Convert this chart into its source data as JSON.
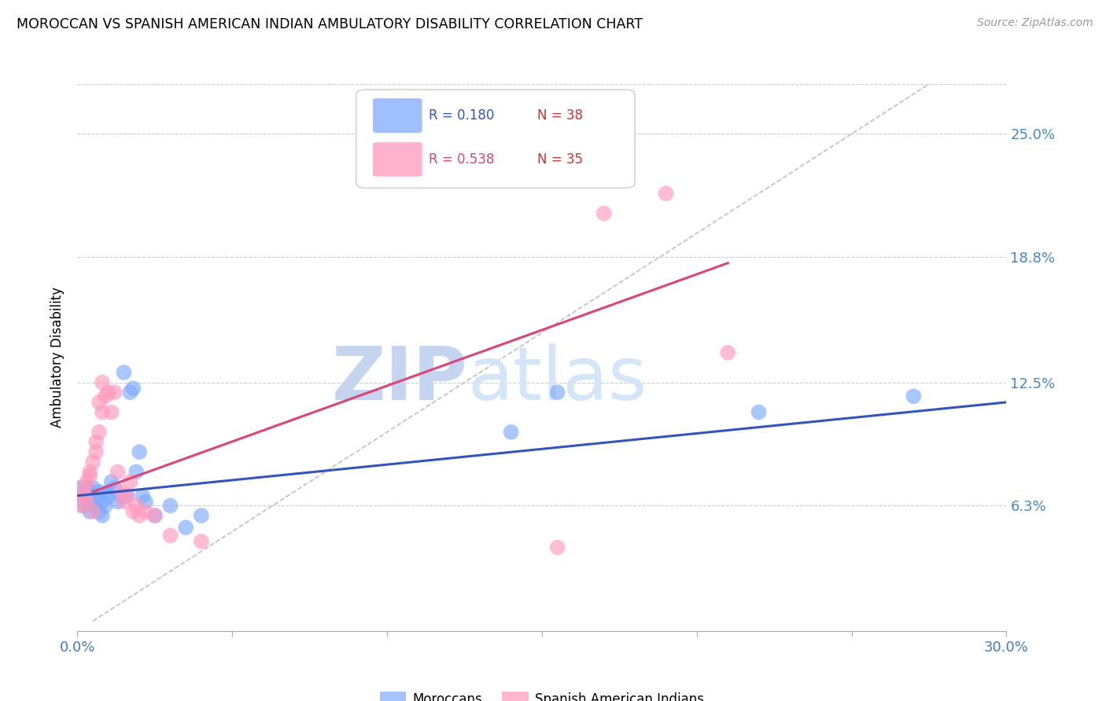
{
  "title": "MOROCCAN VS SPANISH AMERICAN INDIAN AMBULATORY DISABILITY CORRELATION CHART",
  "source": "Source: ZipAtlas.com",
  "ylabel": "Ambulatory Disability",
  "ytick_labels": [
    "25.0%",
    "18.8%",
    "12.5%",
    "6.3%"
  ],
  "ytick_values": [
    0.25,
    0.188,
    0.125,
    0.063
  ],
  "xlim": [
    0.0,
    0.3
  ],
  "ylim": [
    0.0,
    0.275
  ],
  "moroccan_R": "0.180",
  "moroccan_N": "38",
  "spanish_R": "0.538",
  "spanish_N": "35",
  "moroccan_color": "#7faaff",
  "spanish_color": "#ff99bb",
  "moroccan_trend_color": "#3355bb",
  "spanish_trend_color": "#dd4477",
  "legend_label_moroccan": "Moroccans",
  "legend_label_spanish": "Spanish American Indians",
  "watermark_zip": "ZIP",
  "watermark_atlas": "atlas",
  "moroccan_scatter_x": [
    0.001,
    0.002,
    0.002,
    0.003,
    0.003,
    0.004,
    0.004,
    0.005,
    0.005,
    0.006,
    0.006,
    0.007,
    0.007,
    0.008,
    0.008,
    0.009,
    0.01,
    0.01,
    0.011,
    0.012,
    0.013,
    0.014,
    0.015,
    0.016,
    0.017,
    0.018,
    0.019,
    0.02,
    0.021,
    0.022,
    0.025,
    0.03,
    0.035,
    0.04,
    0.14,
    0.155,
    0.22,
    0.27
  ],
  "moroccan_scatter_y": [
    0.072,
    0.068,
    0.063,
    0.072,
    0.065,
    0.068,
    0.06,
    0.063,
    0.072,
    0.063,
    0.068,
    0.07,
    0.06,
    0.065,
    0.058,
    0.063,
    0.07,
    0.068,
    0.075,
    0.072,
    0.065,
    0.068,
    0.13,
    0.068,
    0.12,
    0.122,
    0.08,
    0.09,
    0.068,
    0.065,
    0.058,
    0.063,
    0.052,
    0.058,
    0.1,
    0.12,
    0.11,
    0.118
  ],
  "spanish_scatter_x": [
    0.001,
    0.002,
    0.002,
    0.003,
    0.003,
    0.004,
    0.004,
    0.005,
    0.005,
    0.006,
    0.006,
    0.007,
    0.007,
    0.008,
    0.008,
    0.009,
    0.01,
    0.011,
    0.012,
    0.013,
    0.014,
    0.015,
    0.016,
    0.017,
    0.018,
    0.019,
    0.02,
    0.022,
    0.025,
    0.03,
    0.04,
    0.155,
    0.17,
    0.19,
    0.21
  ],
  "spanish_scatter_y": [
    0.063,
    0.068,
    0.072,
    0.065,
    0.075,
    0.08,
    0.078,
    0.085,
    0.06,
    0.09,
    0.095,
    0.1,
    0.115,
    0.11,
    0.125,
    0.118,
    0.12,
    0.11,
    0.12,
    0.08,
    0.07,
    0.065,
    0.068,
    0.075,
    0.06,
    0.063,
    0.058,
    0.06,
    0.058,
    0.048,
    0.045,
    0.042,
    0.21,
    0.22,
    0.14
  ],
  "moroccan_trend_x": [
    0.0,
    0.3
  ],
  "moroccan_trend_y": [
    0.068,
    0.115
  ],
  "spanish_trend_x": [
    0.005,
    0.21
  ],
  "spanish_trend_y": [
    0.07,
    0.185
  ]
}
